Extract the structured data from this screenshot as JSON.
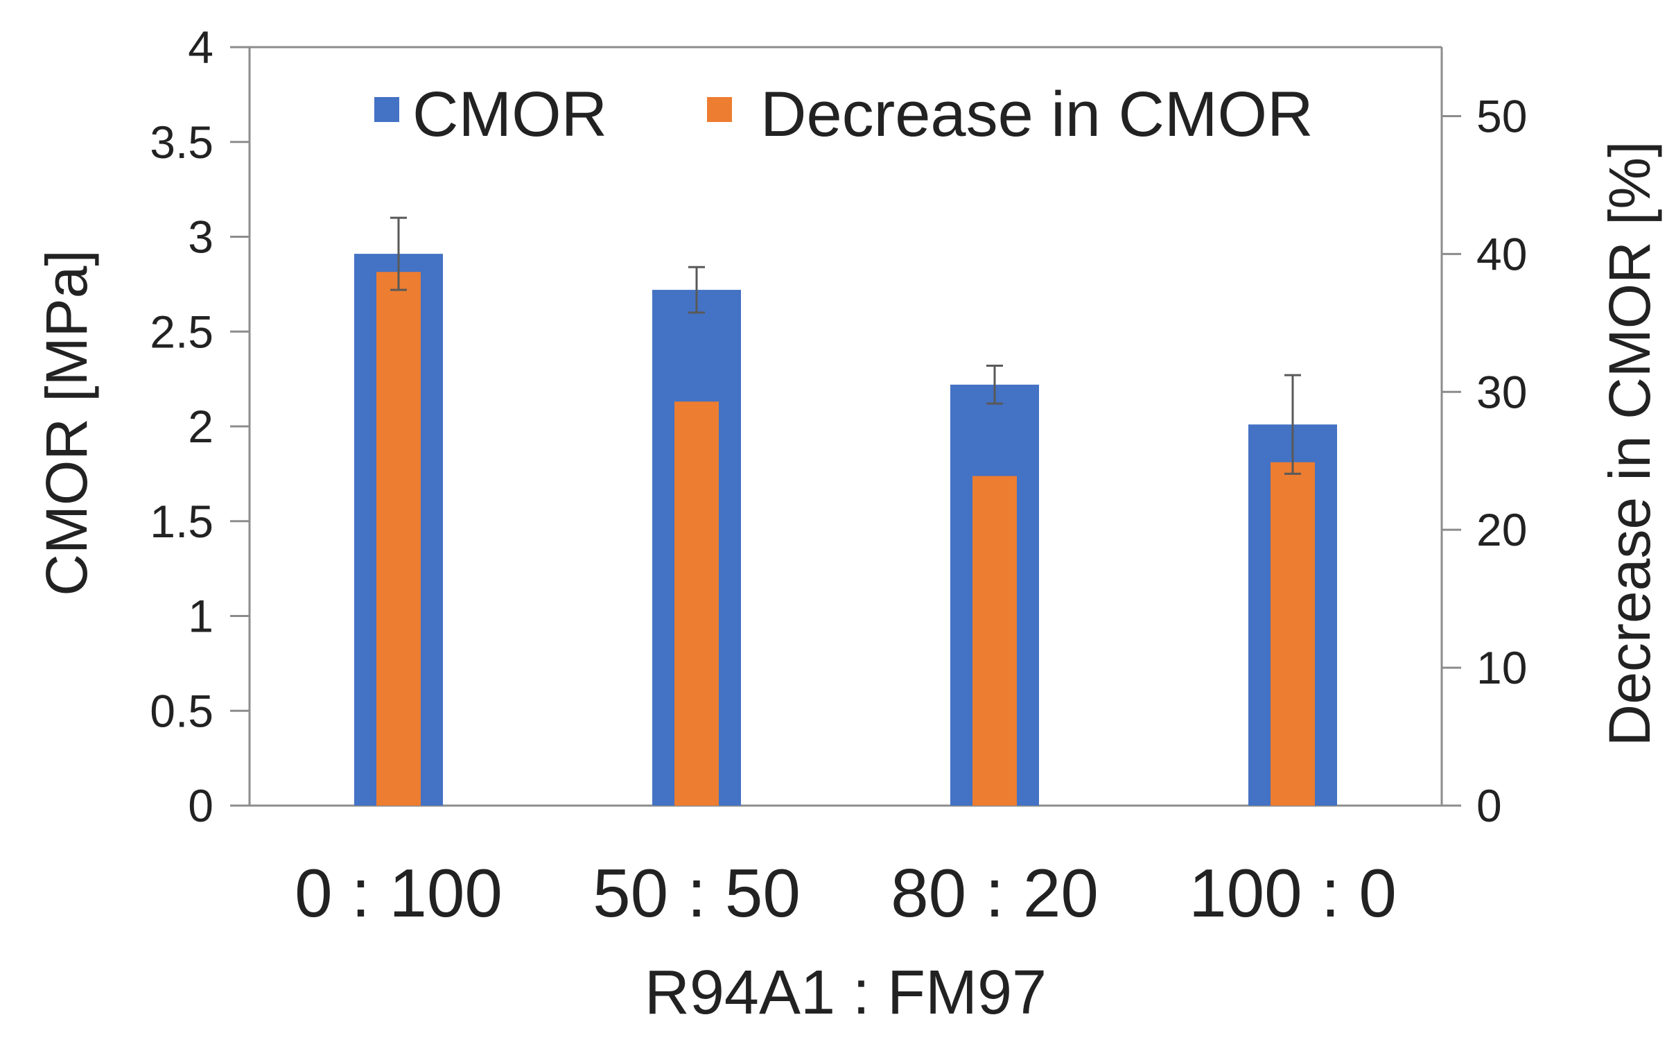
{
  "chart_data": {
    "type": "bar",
    "categories": [
      "0 : 100",
      "50 : 50",
      "80 : 20",
      "100 : 0"
    ],
    "series": [
      {
        "name": "CMOR",
        "axis": "left",
        "color": "#4472C4",
        "values": [
          2.91,
          2.72,
          2.22,
          2.01
        ],
        "error": [
          0.19,
          0.12,
          0.1,
          0.26
        ]
      },
      {
        "name": "Decrease in CMOR",
        "axis": "right",
        "color": "#ED7D31",
        "values": [
          38.7,
          29.3,
          23.9,
          24.9
        ]
      }
    ],
    "xlabel": "R94A1 : FM97",
    "ylabel": "CMOR [MPa]",
    "ylabel_right": "Decrease in CMOR [%]",
    "ylim": [
      0,
      4
    ],
    "yticks": [
      "0",
      "0.5",
      "1",
      "1.5",
      "2",
      "2.5",
      "3",
      "3.5",
      "4"
    ],
    "ylim_right": [
      0,
      55
    ],
    "yticks_right": [
      "0",
      "10",
      "20",
      "30",
      "40",
      "50"
    ],
    "grid": false,
    "legend": "top-center, inside plot"
  }
}
